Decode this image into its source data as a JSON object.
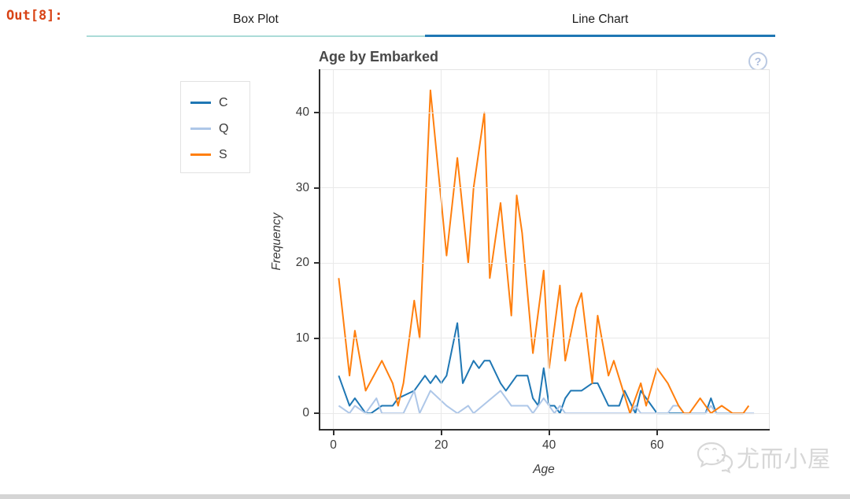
{
  "prompt": {
    "out": "Out[8]:"
  },
  "tabs": [
    {
      "label": "Box Plot",
      "active": false,
      "underline_color": "#abdcd8"
    },
    {
      "label": "Line Chart",
      "active": true,
      "underline_color": "#1f77b4"
    }
  ],
  "chart": {
    "title": "Age by Embarked",
    "help_icon": "?",
    "xlabel": "Age",
    "ylabel": "Frequency",
    "x_ticks": [
      0,
      20,
      40,
      60
    ],
    "y_ticks": [
      0,
      10,
      20,
      30,
      40
    ]
  },
  "chart_data": {
    "type": "line",
    "title": "Age by Embarked",
    "xlabel": "Age",
    "ylabel": "Frequency",
    "xlim": [
      -2.7,
      80.9
    ],
    "ylim": [
      -2.3,
      45.8
    ],
    "grid": true,
    "legend_position": "left-outside",
    "series": [
      {
        "name": "C",
        "color": "#1f77b4",
        "points": [
          [
            1,
            5
          ],
          [
            3,
            1
          ],
          [
            4,
            2
          ],
          [
            6,
            0
          ],
          [
            7,
            0
          ],
          [
            9,
            1
          ],
          [
            11,
            1
          ],
          [
            12,
            2
          ],
          [
            15,
            3
          ],
          [
            17,
            5
          ],
          [
            18,
            4
          ],
          [
            19,
            5
          ],
          [
            20,
            4
          ],
          [
            21,
            5
          ],
          [
            23,
            12
          ],
          [
            24,
            4
          ],
          [
            26,
            7
          ],
          [
            27,
            6
          ],
          [
            28,
            7
          ],
          [
            29,
            7
          ],
          [
            31,
            4
          ],
          [
            32,
            3
          ],
          [
            34,
            5
          ],
          [
            36,
            5
          ],
          [
            37,
            2
          ],
          [
            38,
            1
          ],
          [
            39,
            6
          ],
          [
            40,
            1
          ],
          [
            41,
            1
          ],
          [
            42,
            0
          ],
          [
            43,
            2
          ],
          [
            44,
            3
          ],
          [
            46,
            3
          ],
          [
            48,
            4
          ],
          [
            49,
            4
          ],
          [
            51,
            1
          ],
          [
            53,
            1
          ],
          [
            54,
            3
          ],
          [
            56,
            0
          ],
          [
            57,
            3
          ],
          [
            59,
            1
          ],
          [
            60,
            0
          ],
          [
            69,
            0
          ],
          [
            70,
            2
          ],
          [
            71,
            0
          ],
          [
            76,
            0
          ]
        ]
      },
      {
        "name": "Q",
        "color": "#aec7e8",
        "points": [
          [
            1,
            1
          ],
          [
            3,
            0
          ],
          [
            4,
            1
          ],
          [
            6,
            0
          ],
          [
            8,
            2
          ],
          [
            9,
            0
          ],
          [
            13,
            0
          ],
          [
            15,
            3
          ],
          [
            16,
            0
          ],
          [
            18,
            3
          ],
          [
            21,
            1
          ],
          [
            23,
            0
          ],
          [
            25,
            1
          ],
          [
            26,
            0
          ],
          [
            31,
            3
          ],
          [
            33,
            1
          ],
          [
            35,
            1
          ],
          [
            36,
            1
          ],
          [
            37,
            0
          ],
          [
            39,
            2
          ],
          [
            40,
            1
          ],
          [
            41,
            0
          ],
          [
            42,
            1
          ],
          [
            43,
            0
          ],
          [
            55,
            0
          ],
          [
            56,
            1
          ],
          [
            57,
            0
          ],
          [
            62,
            0
          ],
          [
            63,
            1
          ],
          [
            64,
            1
          ],
          [
            65,
            0
          ],
          [
            69,
            0
          ],
          [
            70,
            1
          ],
          [
            71,
            0
          ],
          [
            78,
            0
          ]
        ]
      },
      {
        "name": "S",
        "color": "#ff7f0e",
        "points": [
          [
            1,
            18
          ],
          [
            3,
            5
          ],
          [
            4,
            11
          ],
          [
            6,
            3
          ],
          [
            9,
            7
          ],
          [
            11,
            4
          ],
          [
            12,
            1
          ],
          [
            13,
            4
          ],
          [
            15,
            15
          ],
          [
            16,
            10
          ],
          [
            18,
            43
          ],
          [
            21,
            21
          ],
          [
            23,
            34
          ],
          [
            25,
            20
          ],
          [
            26,
            30
          ],
          [
            28,
            40
          ],
          [
            29,
            18
          ],
          [
            31,
            28
          ],
          [
            33,
            13
          ],
          [
            34,
            29
          ],
          [
            35,
            24
          ],
          [
            37,
            8
          ],
          [
            39,
            19
          ],
          [
            40,
            6
          ],
          [
            42,
            17
          ],
          [
            43,
            7
          ],
          [
            45,
            14
          ],
          [
            46,
            16
          ],
          [
            48,
            4
          ],
          [
            49,
            13
          ],
          [
            51,
            5
          ],
          [
            52,
            7
          ],
          [
            55,
            0
          ],
          [
            57,
            4
          ],
          [
            58,
            1
          ],
          [
            60,
            6
          ],
          [
            62,
            4
          ],
          [
            64,
            1
          ],
          [
            65,
            0
          ],
          [
            66,
            0
          ],
          [
            68,
            2
          ],
          [
            70,
            0
          ],
          [
            72,
            1
          ],
          [
            74,
            0
          ],
          [
            76,
            0
          ],
          [
            77,
            1
          ]
        ]
      }
    ]
  },
  "watermark": {
    "text": "尤而小屋",
    "icon": "wechat-icon",
    "color": "#d7d7d7"
  },
  "colors": {
    "out_prompt": "#d84315",
    "title": "#494949",
    "axis_line": "#2f2f2f",
    "grid_line": "#e9e9e9",
    "tick_label": "#3b3b3b",
    "legend_border": "#e2e2e2"
  }
}
